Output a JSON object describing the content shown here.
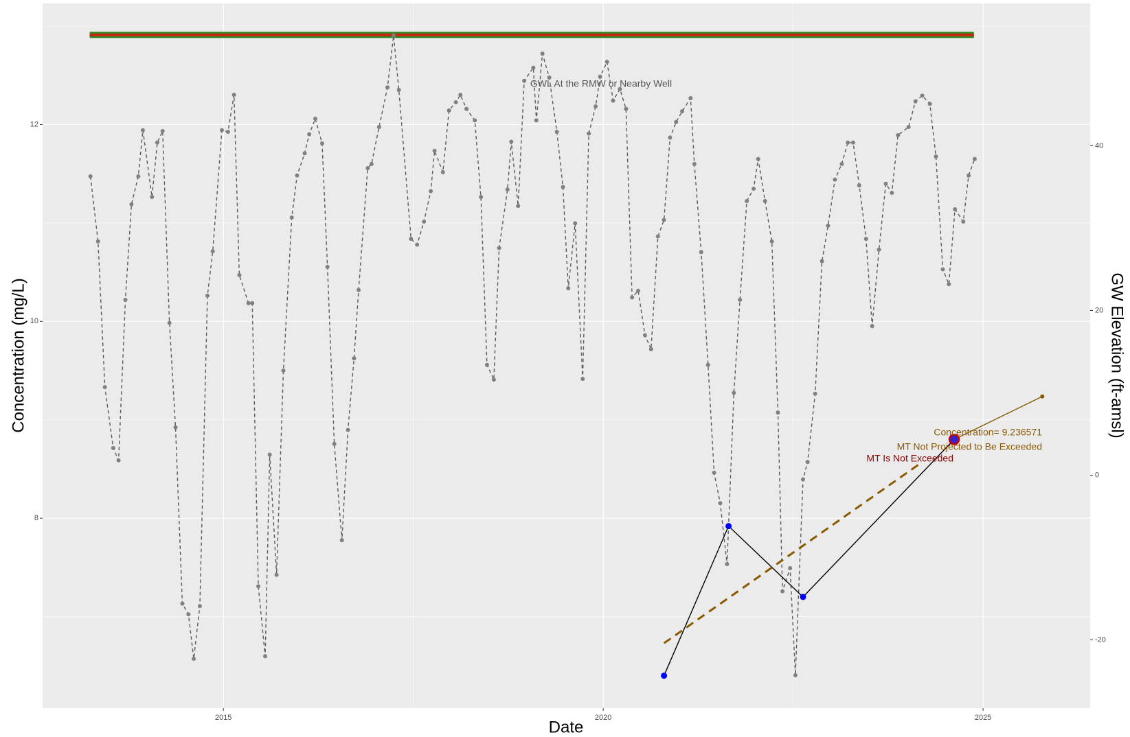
{
  "chart_data": {
    "type": "line",
    "xlabel": "Date",
    "ylabel": "Concentration (mg/L)",
    "y2label": "GW Elevation (ft-amsl)",
    "xlim": [
      2012.62,
      2026.41
    ],
    "ylim": [
      6.07,
      13.23
    ],
    "y2lim": [
      -28.3,
      57.3
    ],
    "xticks": [
      2015,
      2020,
      2025
    ],
    "yticks": [
      8,
      10,
      12
    ],
    "y2ticks": [
      -20,
      0,
      20,
      40
    ],
    "xminor": [
      2017.5,
      2022.5
    ],
    "yminor": [
      7,
      9,
      11,
      13
    ],
    "grid": true,
    "background": "#ebebeb",
    "mt_line": {
      "x": [
        2013.24,
        2024.88
      ],
      "values": [
        12.91,
        12.91
      ],
      "color": "#c8260f",
      "border_color": "#2e8b22"
    },
    "series": [
      {
        "axis": "y2",
        "color": "#5a5a5a",
        "marker_color": "#808080",
        "line_style": "dashed",
        "marker": true,
        "x": [
          2013.25,
          2013.35,
          2013.44,
          2013.55,
          2013.62,
          2013.71,
          2013.79,
          2013.88,
          2013.94,
          2014.06,
          2014.13,
          2014.2,
          2014.29,
          2014.37,
          2014.46,
          2014.54,
          2014.61,
          2014.69,
          2014.79,
          2014.86,
          2014.98,
          2015.06,
          2015.14,
          2015.21,
          2015.33,
          2015.38,
          2015.46,
          2015.55,
          2015.61,
          2015.7,
          2015.79,
          2015.9,
          2015.97,
          2016.07,
          2016.13,
          2016.21,
          2016.3,
          2016.37,
          2016.46,
          2016.56,
          2016.64,
          2016.72,
          2016.78,
          2016.9,
          2016.95,
          2017.05,
          2017.16,
          2017.24,
          2017.31,
          2017.47,
          2017.55,
          2017.64,
          2017.73,
          2017.78,
          2017.89,
          2017.97,
          2018.06,
          2018.12,
          2018.2,
          2018.31,
          2018.39,
          2018.47,
          2018.56,
          2018.63,
          2018.74,
          2018.79,
          2018.88,
          2018.96,
          2019.08,
          2019.12,
          2019.2,
          2019.29,
          2019.39,
          2019.47,
          2019.54,
          2019.63,
          2019.73,
          2019.81,
          2019.9,
          2019.96,
          2020.05,
          2020.13,
          2020.22,
          2020.3,
          2020.38,
          2020.46,
          2020.55,
          2020.63,
          2020.72,
          2020.8,
          2020.88,
          2020.96,
          2021.04,
          2021.15,
          2021.2,
          2021.29,
          2021.38,
          2021.46,
          2021.54,
          2021.63,
          2021.72,
          2021.8,
          2021.89,
          2021.98,
          2022.04,
          2022.13,
          2022.22,
          2022.3,
          2022.36,
          2022.46,
          2022.53,
          2022.63,
          2022.69,
          2022.79,
          2022.88,
          2022.96,
          2023.05,
          2023.14,
          2023.22,
          2023.29,
          2023.37,
          2023.46,
          2023.54,
          2023.63,
          2023.72,
          2023.8,
          2023.88,
          2024.02,
          2024.11,
          2024.2,
          2024.3,
          2024.38,
          2024.47,
          2024.55,
          2024.63,
          2024.74,
          2024.81,
          2024.89
        ],
        "values": [
          36.3,
          28.4,
          10.7,
          3.3,
          1.8,
          21.3,
          32.9,
          36.3,
          41.9,
          33.8,
          40.4,
          41.8,
          18.5,
          5.8,
          -15.6,
          -16.9,
          -22.3,
          -15.9,
          21.8,
          27.2,
          41.9,
          41.7,
          46.2,
          24.3,
          20.9,
          20.9,
          -13.5,
          -22.0,
          2.5,
          -12.1,
          12.7,
          31.3,
          36.4,
          39.1,
          41.4,
          43.3,
          40.3,
          25.3,
          3.8,
          -7.9,
          5.5,
          14.2,
          22.5,
          37.3,
          37.8,
          42.3,
          47.1,
          53.4,
          46.8,
          28.7,
          28.0,
          30.8,
          34.5,
          39.4,
          36.8,
          44.3,
          45.3,
          46.2,
          44.5,
          43.1,
          33.8,
          13.4,
          11.6,
          27.6,
          34.7,
          40.5,
          32.7,
          47.9,
          49.5,
          43.1,
          51.2,
          48.3,
          41.7,
          35.0,
          22.7,
          30.6,
          11.7,
          41.5,
          44.8,
          48.4,
          50.2,
          45.5,
          46.9,
          44.5,
          21.6,
          22.4,
          17.0,
          15.3,
          29.0,
          31.0,
          41.0,
          42.9,
          44.2,
          45.8,
          37.8,
          27.1,
          13.4,
          0.3,
          -3.4,
          -10.8,
          10.0,
          21.3,
          33.3,
          34.8,
          38.4,
          33.3,
          28.4,
          7.6,
          -14.1,
          -11.3,
          -24.3,
          -0.5,
          1.6,
          9.9,
          26.0,
          30.3,
          35.9,
          37.8,
          40.4,
          40.4,
          35.2,
          28.7,
          18.1,
          27.4,
          35.4,
          34.3,
          41.3,
          42.3,
          45.4,
          46.1,
          45.1,
          38.7,
          25.0,
          23.2,
          32.3,
          30.8,
          36.4,
          38.4
        ]
      },
      {
        "axis": "y",
        "color": "#000000",
        "marker_color": "#0000ff",
        "line_style": "solid",
        "marker": true,
        "x": [
          2020.8,
          2021.65,
          2022.63,
          2024.62
        ],
        "values": [
          6.4,
          7.92,
          7.2,
          8.8
        ]
      },
      {
        "axis": "y",
        "color": "#8b5a00",
        "line_style": "dashed",
        "marker": false,
        "x": [
          2020.8,
          2024.18
        ],
        "values": [
          6.73,
          8.56
        ]
      },
      {
        "axis": "y",
        "color": "#8b5a00",
        "marker_color": "#8b5a00",
        "line_style": "solid",
        "marker": true,
        "x": [
          2024.62,
          2025.78
        ],
        "values": [
          8.8,
          9.236571
        ]
      },
      {
        "axis": "y",
        "color": "#cc0000",
        "marker_color": "#3a22c8",
        "line_style": "none",
        "marker": true,
        "marker_size": "large",
        "x": [
          2024.62
        ],
        "values": [
          8.8
        ]
      }
    ],
    "annotations": [
      {
        "text": "GWL At the RMW or Nearby Well",
        "color": "#555555"
      },
      {
        "text": "Concentration= 9.236571",
        "color": "#8b5a00"
      },
      {
        "text": "MT Not Projected to Be Exceeded",
        "color": "#8b5a00"
      },
      {
        "text": "MT Is Not Exceeded",
        "color": "#8b0000"
      }
    ]
  }
}
